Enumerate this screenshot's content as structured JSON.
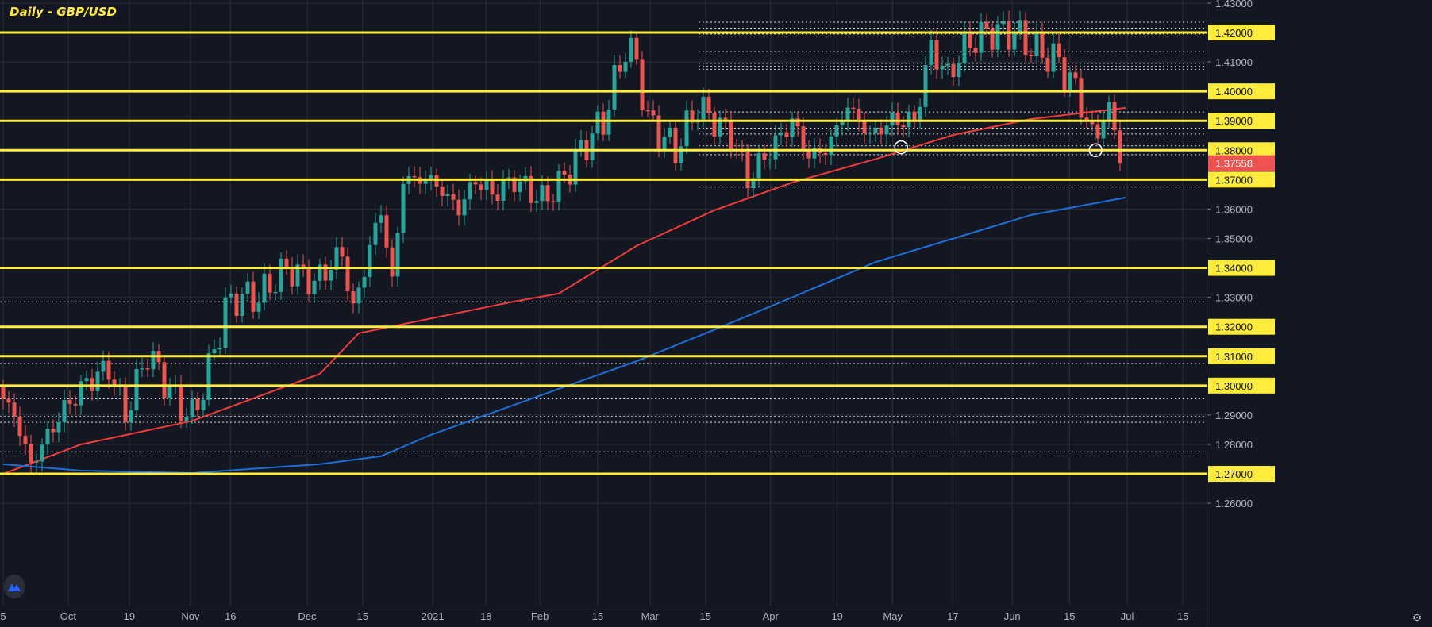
{
  "title": "Daily - GBP/USD",
  "colors": {
    "background": "#131722",
    "grid": "#2a2e39",
    "up": "#26a69a",
    "down": "#ef5350",
    "level": "#ffeb3b",
    "ma_fast": "#f23b3b",
    "ma_slow": "#1e6fd9",
    "price_badge": "#ef5350"
  },
  "chart_data": {
    "type": "candlestick",
    "title": "Daily - GBP/USD",
    "ylim": [
      1.2555,
      1.4331
    ],
    "xlim_days": [
      -0.6,
      216.6
    ],
    "y_ticks": [
      "1.43000",
      "1.42000",
      "1.41000",
      "1.40000",
      "1.39000",
      "1.38000",
      "1.37000",
      "1.36000",
      "1.35000",
      "1.34000",
      "1.33000",
      "1.32000",
      "1.31000",
      "1.30000",
      "1.29000",
      "1.28000",
      "1.27000",
      "1.26000"
    ],
    "x_ticks": [
      {
        "label": "5",
        "day": 0
      },
      {
        "label": "Oct",
        "day": 11.7
      },
      {
        "label": "19",
        "day": 22.7
      },
      {
        "label": "Nov",
        "day": 33.7
      },
      {
        "label": "16",
        "day": 40.9
      },
      {
        "label": "Dec",
        "day": 54.7
      },
      {
        "label": "15",
        "day": 64.7
      },
      {
        "label": "2021",
        "day": 77.3
      },
      {
        "label": "18",
        "day": 86.9
      },
      {
        "label": "Feb",
        "day": 96.6
      },
      {
        "label": "15",
        "day": 107
      },
      {
        "label": "Mar",
        "day": 116.4
      },
      {
        "label": "15",
        "day": 126.4
      },
      {
        "label": "Apr",
        "day": 138.1
      },
      {
        "label": "19",
        "day": 150.1
      },
      {
        "label": "May",
        "day": 160.1
      },
      {
        "label": "17",
        "day": 170.9
      },
      {
        "label": "Jun",
        "day": 181.6
      },
      {
        "label": "15",
        "day": 191.9
      },
      {
        "label": "Jul",
        "day": 202.3
      },
      {
        "label": "15",
        "day": 212.3
      }
    ],
    "close_path": [
      [
        0,
        1.2955
      ],
      [
        2,
        1.29
      ],
      [
        5,
        1.273
      ],
      [
        8,
        1.283
      ],
      [
        11,
        1.292
      ],
      [
        15,
        1.301
      ],
      [
        19,
        1.306
      ],
      [
        22,
        1.29
      ],
      [
        26,
        1.311
      ],
      [
        28,
        1.305
      ],
      [
        31,
        1.295
      ],
      [
        34,
        1.289
      ],
      [
        37,
        1.305
      ],
      [
        40,
        1.326
      ],
      [
        42,
        1.33
      ],
      [
        46,
        1.33
      ],
      [
        51,
        1.34
      ],
      [
        56,
        1.335
      ],
      [
        61,
        1.345
      ],
      [
        63,
        1.325
      ],
      [
        65,
        1.34
      ],
      [
        68,
        1.36
      ],
      [
        70,
        1.335
      ],
      [
        72,
        1.37
      ],
      [
        77,
        1.37
      ],
      [
        82,
        1.36
      ],
      [
        85,
        1.37
      ],
      [
        88,
        1.365
      ],
      [
        92,
        1.37
      ],
      [
        97,
        1.363
      ],
      [
        100,
        1.368
      ],
      [
        104,
        1.38
      ],
      [
        108,
        1.39
      ],
      [
        112,
        1.415
      ],
      [
        114,
        1.41
      ],
      [
        116,
        1.39
      ],
      [
        121,
        1.38
      ],
      [
        125,
        1.395
      ],
      [
        131,
        1.385
      ],
      [
        134,
        1.37
      ],
      [
        138,
        1.38
      ],
      [
        142,
        1.39
      ],
      [
        145,
        1.378
      ],
      [
        148,
        1.38
      ],
      [
        152,
        1.395
      ],
      [
        156,
        1.385
      ],
      [
        160,
        1.39
      ],
      [
        164,
        1.39
      ],
      [
        167,
        1.415
      ],
      [
        170,
        1.405
      ],
      [
        173,
        1.415
      ],
      [
        177,
        1.42
      ],
      [
        182,
        1.42
      ],
      [
        185,
        1.415
      ],
      [
        190,
        1.41
      ],
      [
        194,
        1.397
      ],
      [
        196,
        1.383
      ],
      [
        198,
        1.393
      ],
      [
        200,
        1.388
      ],
      [
        201,
        1.3756
      ]
    ],
    "series": [
      {
        "name": "MA fast (red)",
        "points": [
          [
            0,
            1.27
          ],
          [
            14,
            1.28
          ],
          [
            34,
            1.288
          ],
          [
            57,
            1.304
          ],
          [
            64,
            1.3178
          ],
          [
            92,
            1.3286
          ],
          [
            100,
            1.3313
          ],
          [
            114,
            1.3475
          ],
          [
            128,
            1.3596
          ],
          [
            142,
            1.369
          ],
          [
            157,
            1.377
          ],
          [
            171,
            1.3852
          ],
          [
            185,
            1.3906
          ],
          [
            202,
            1.3944
          ]
        ]
      },
      {
        "name": "MA slow (blue)",
        "points": [
          [
            0,
            1.2733
          ],
          [
            14,
            1.2711
          ],
          [
            34,
            1.2703
          ],
          [
            57,
            1.2733
          ],
          [
            68,
            1.276
          ],
          [
            77,
            1.2833
          ],
          [
            100,
            1.2989
          ],
          [
            114,
            1.3083
          ],
          [
            128,
            1.319
          ],
          [
            142,
            1.33
          ],
          [
            157,
            1.342
          ],
          [
            171,
            1.35
          ],
          [
            185,
            1.358
          ],
          [
            202,
            1.3639
          ]
        ]
      }
    ],
    "levels": [
      1.42,
      1.4,
      1.39,
      1.38,
      1.37,
      1.34,
      1.32,
      1.31,
      1.3,
      1.27
    ],
    "dotted_levels": [
      1.4235,
      1.4215,
      1.4195,
      1.4185,
      1.4135,
      1.4095,
      1.4085,
      1.4075,
      1.393,
      1.3875,
      1.3855,
      1.3815,
      1.3785,
      1.3675,
      1.3285,
      1.3075,
      1.2955,
      1.2895,
      1.2875,
      1.2775
    ],
    "markers": [
      {
        "type": "circle",
        "day": 161.6,
        "price": 1.381
      },
      {
        "type": "circle",
        "day": 196.6,
        "price": 1.38
      }
    ],
    "last_price": "1.37558"
  }
}
